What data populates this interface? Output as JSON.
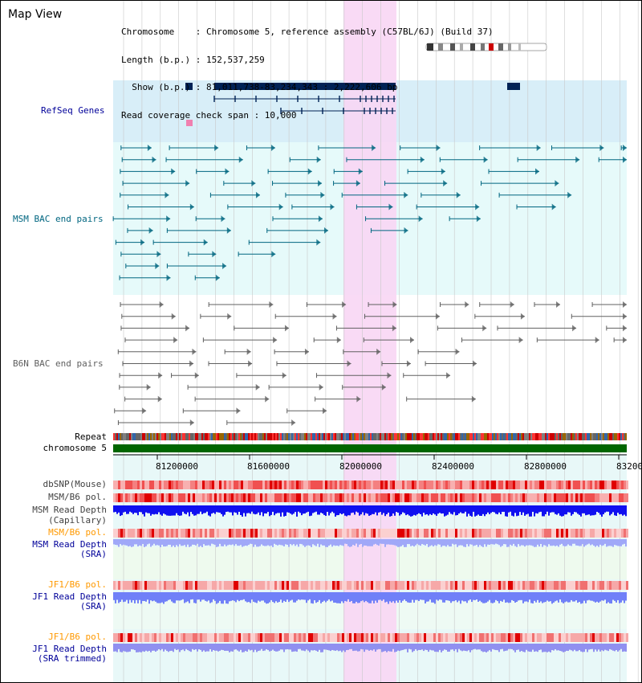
{
  "header": {
    "title": "Map View",
    "info_lines": [
      "Chromosome    : Chromosome 5, reference assembly (C57BL/6J) (Build 37)",
      "Length (b.p.) : 152,537,259",
      "  Show (b.p.) : 81,011,738-83,234,343 : 2,222,606 bp",
      "Read coverage check span : 10,000"
    ]
  },
  "tracks": {
    "refseq": {
      "label": "RefSeq Genes",
      "color": "#000099"
    },
    "msm_bac": {
      "label": "MSM BAC end pairs",
      "color": "#006680"
    },
    "b6n_bac": {
      "label": "B6N BAC end pairs",
      "color": "#606060"
    },
    "repeat": {
      "label": "Repeat"
    },
    "chromosome": {
      "label": "chromosome 5",
      "color": "#006600"
    },
    "dbsnp": {
      "label": "dbSNP(Mouse)"
    },
    "msm_b6_pol_1": {
      "label": "MSM/B6 pol."
    },
    "msm_depth_cap": {
      "label_1": "MSM Read Depth",
      "label_2": "(Capillary)"
    },
    "msm_b6_pol_2": {
      "label": "MSM/B6 pol.",
      "color": "#ff9900"
    },
    "msm_depth_sra": {
      "label_1": "MSM Read Depth",
      "label_2": "(SRA)",
      "color": "#000099"
    },
    "jf1_b6_pol_1": {
      "label": "JF1/B6 pol.",
      "color": "#ff9900"
    },
    "jf1_depth_sra": {
      "label_1": "JF1 Read Depth",
      "label_2": "(SRA)",
      "color": "#000099"
    },
    "jf1_b6_pol_2": {
      "label": "JF1/B6 pol.",
      "color": "#ff9900"
    },
    "jf1_depth_trim": {
      "label_1": "JF1 Read Depth",
      "label_2": "(SRA trimmed)",
      "color": "#000099"
    }
  },
  "axis": {
    "ticks": [
      "81200000",
      "81600000",
      "82000000",
      "82400000",
      "82800000",
      "83200"
    ]
  },
  "highlight_color": "#f8d6f4"
}
